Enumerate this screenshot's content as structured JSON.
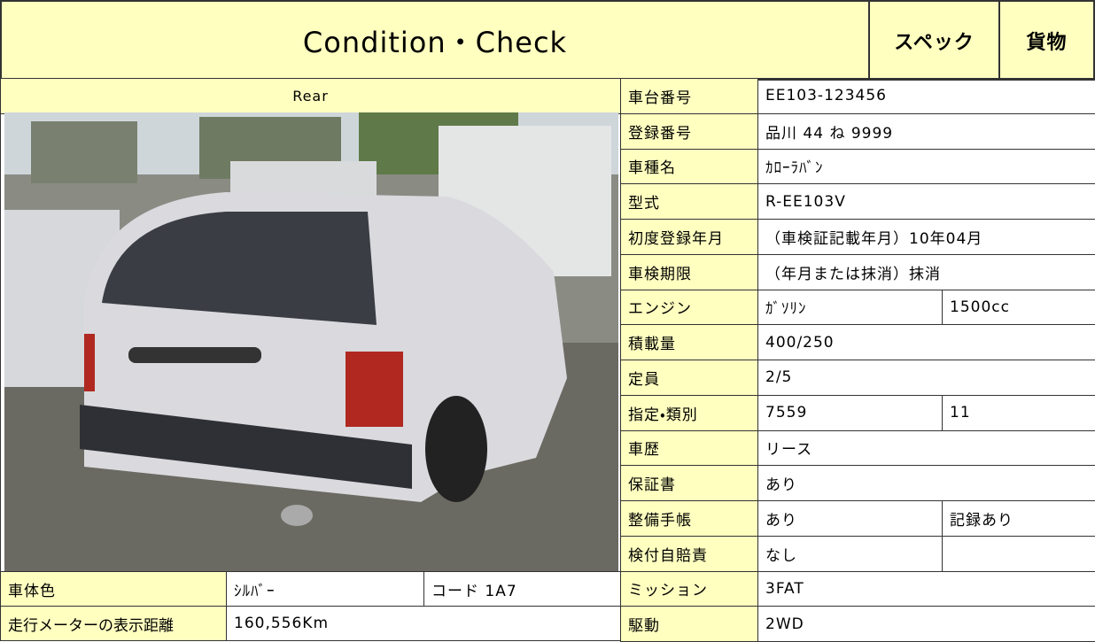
{
  "header": {
    "title": "Condition・Check",
    "tabs": [
      "スペック",
      "貨物"
    ]
  },
  "photo": {
    "caption": "Rear"
  },
  "body_info": {
    "rows": [
      [
        "車体色",
        "ｼﾙﾊﾞｰ",
        "コード 1A7"
      ],
      [
        "走行メーターの表示距離",
        "160,556Km"
      ]
    ]
  },
  "specs": {
    "rows": [
      [
        "車台番号",
        "EE103-123456"
      ],
      [
        "登録番号",
        "品川 44 ね 9999"
      ],
      [
        "車種名",
        "ｶﾛｰﾗﾊﾞﾝ"
      ],
      [
        "型式",
        "R-EE103V"
      ],
      [
        "初度登録年月",
        "（車検証記載年月）10年04月"
      ],
      [
        "車検期限",
        "（年月または抹消）抹消"
      ],
      [
        "エンジン",
        "ｶﾞｿﾘﾝ",
        "1500cc"
      ],
      [
        "積載量",
        "400/250"
      ],
      [
        "定員",
        "2/5"
      ],
      [
        "指定・類別",
        "7559",
        "11"
      ],
      [
        "車歴",
        "リース"
      ],
      [
        "保証書",
        "あり"
      ],
      [
        "整備手帳",
        "あり",
        "記録あり"
      ],
      [
        "検付自賠責",
        "なし"
      ],
      [
        "ミッション",
        "3FAT"
      ],
      [
        "駆動",
        "2WD"
      ]
    ]
  }
}
